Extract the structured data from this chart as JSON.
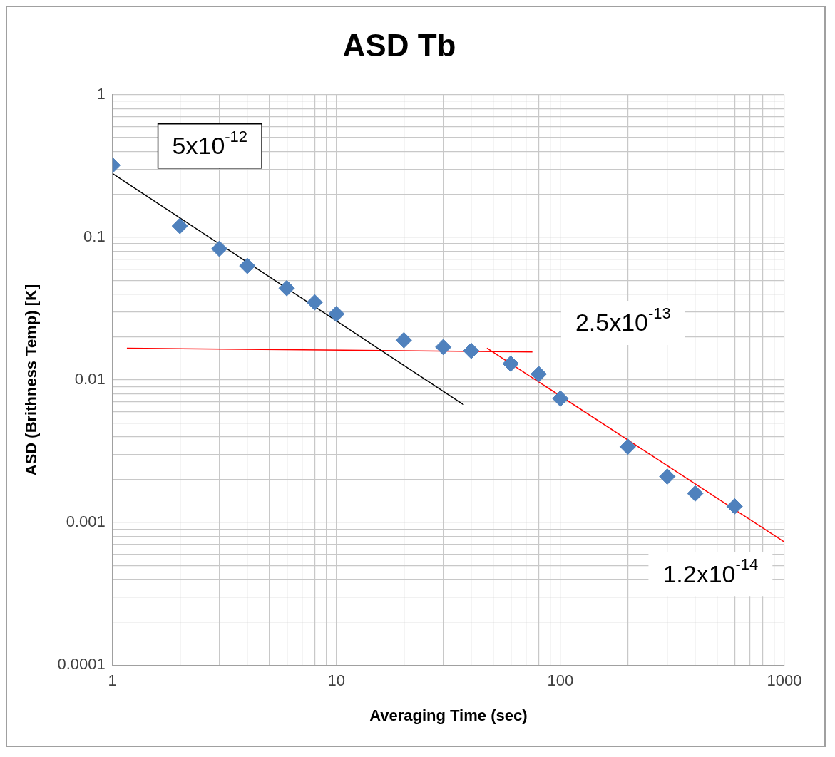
{
  "chart_data": {
    "type": "scatter",
    "title": "ASD Tb",
    "xlabel": "Averaging Time (sec)",
    "ylabel": "ASD (Brithness Temp) [K]",
    "log": "xy",
    "grid": true,
    "legend": false,
    "marker": "diamond",
    "xlim": [
      1,
      1000
    ],
    "ylim": [
      0.0001,
      1
    ],
    "xticks": [
      1,
      {
        "value": 2,
        "label": null
      },
      {
        "value": 3,
        "label": null
      },
      {
        "value": 4,
        "label": null
      },
      {
        "value": 5,
        "label": null
      },
      {
        "value": 6,
        "label": null
      },
      {
        "value": 7,
        "label": null
      },
      {
        "value": 8,
        "label": null
      },
      {
        "value": 9,
        "label": null
      },
      10,
      {
        "value": 20,
        "label": null
      },
      {
        "value": 30,
        "label": null
      },
      {
        "value": 40,
        "label": null
      },
      {
        "value": 50,
        "label": null
      },
      {
        "value": 60,
        "label": null
      },
      {
        "value": 70,
        "label": null
      },
      {
        "value": 80,
        "label": null
      },
      {
        "value": 90,
        "label": null
      },
      100,
      {
        "value": 200,
        "label": null
      },
      {
        "value": 300,
        "label": null
      },
      {
        "value": 400,
        "label": null
      },
      {
        "value": 500,
        "label": null
      },
      {
        "value": 600,
        "label": null
      },
      {
        "value": 700,
        "label": null
      },
      {
        "value": 800,
        "label": null
      },
      {
        "value": 900,
        "label": null
      },
      1000
    ],
    "yticks": [
      0.0001,
      {
        "value": 0.0002,
        "label": null
      },
      {
        "value": 0.0003,
        "label": null
      },
      {
        "value": 0.0004,
        "label": null
      },
      {
        "value": 0.0005,
        "label": null
      },
      {
        "value": 0.0006,
        "label": null
      },
      {
        "value": 0.0007,
        "label": null
      },
      {
        "value": 0.0008,
        "label": null
      },
      {
        "value": 0.0009,
        "label": null
      },
      0.001,
      {
        "value": 0.002,
        "label": null
      },
      {
        "value": 0.003,
        "label": null
      },
      {
        "value": 0.004,
        "label": null
      },
      {
        "value": 0.005,
        "label": null
      },
      {
        "value": 0.006,
        "label": null
      },
      {
        "value": 0.007,
        "label": null
      },
      {
        "value": 0.008,
        "label": null
      },
      {
        "value": 0.009,
        "label": null
      },
      0.01,
      {
        "value": 0.02,
        "label": null
      },
      {
        "value": 0.03,
        "label": null
      },
      {
        "value": 0.04,
        "label": null
      },
      {
        "value": 0.05,
        "label": null
      },
      {
        "value": 0.06,
        "label": null
      },
      {
        "value": 0.07,
        "label": null
      },
      {
        "value": 0.08,
        "label": null
      },
      {
        "value": 0.09,
        "label": null
      },
      0.1,
      {
        "value": 0.2,
        "label": null
      },
      {
        "value": 0.3,
        "label": null
      },
      {
        "value": 0.4,
        "label": null
      },
      {
        "value": 0.5,
        "label": null
      },
      {
        "value": 0.6,
        "label": null
      },
      {
        "value": 0.7,
        "label": null
      },
      {
        "value": 0.8,
        "label": null
      },
      {
        "value": 0.9,
        "label": null
      },
      1
    ],
    "series": [
      {
        "color": "#4f81bd",
        "x": [
          1,
          2,
          3,
          4,
          6,
          8,
          10,
          20,
          30,
          40,
          60,
          80,
          100,
          200,
          300,
          400,
          600
        ],
        "values": [
          0.32,
          0.12,
          0.083,
          0.063,
          0.044,
          0.035,
          0.029,
          0.019,
          0.017,
          0.016,
          0.013,
          0.011,
          0.0074,
          0.0034,
          0.0021,
          0.0016,
          0.0013
        ]
      },
      {
        "type": "line",
        "color": "#000000",
        "marker": "none",
        "x": [
          1,
          37
        ],
        "values": [
          0.28,
          0.0067
        ]
      },
      {
        "type": "line",
        "color": "#ff0000",
        "marker": "none",
        "x": [
          1.16,
          75
        ],
        "values": [
          0.0167,
          0.0157
        ]
      },
      {
        "type": "line",
        "color": "#ff0000",
        "marker": "none",
        "x": [
          47,
          1000
        ],
        "values": [
          0.0167,
          0.00073
        ]
      }
    ],
    "annotations": [
      "5x10$^{-12}$",
      "2.5x10$^{-13}$",
      "1.2x10$^{-14}$"
    ]
  }
}
